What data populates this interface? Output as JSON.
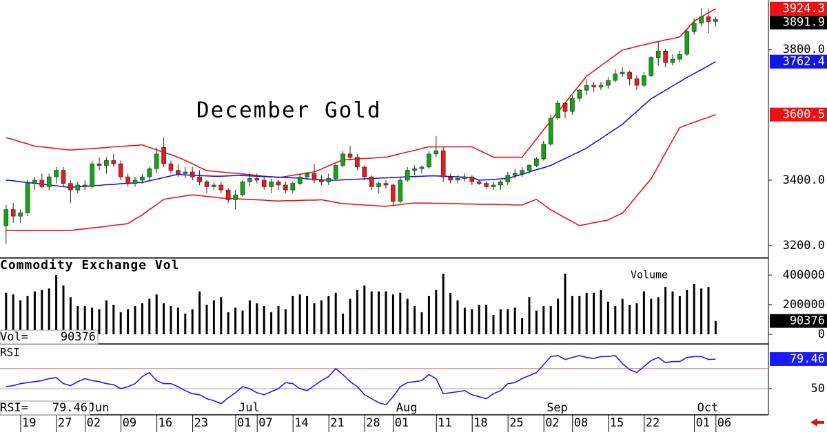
{
  "chart_data": [
    {
      "type": "candlestick",
      "title": "December Gold",
      "categories": [
        null,
        null,
        null,
        "19",
        null,
        null,
        null,
        null,
        "27",
        null,
        null,
        null,
        "02",
        null,
        null,
        null,
        null,
        "09",
        null,
        null,
        null,
        null,
        "16",
        null,
        null,
        null,
        null,
        "23",
        null,
        null,
        null,
        null,
        null,
        "01",
        null,
        null,
        "07",
        null,
        null,
        null,
        null,
        "14",
        null,
        null,
        null,
        null,
        "21",
        null,
        null,
        null,
        null,
        "28",
        null,
        null,
        null,
        "01",
        null,
        null,
        null,
        null,
        null,
        "11",
        null,
        null,
        null,
        null,
        "18",
        null,
        null,
        null,
        null,
        "25",
        null,
        null,
        null,
        null,
        "02",
        null,
        null,
        null,
        "08",
        null,
        null,
        null,
        null,
        "15",
        null,
        null,
        null,
        null,
        "22",
        null,
        null,
        null,
        null,
        null,
        null,
        "01",
        null,
        null,
        "06"
      ],
      "months": [
        null,
        null,
        null,
        null,
        null,
        null,
        null,
        null,
        null,
        null,
        null,
        null,
        "Jun",
        null,
        null,
        null,
        null,
        null,
        null,
        null,
        null,
        null,
        null,
        null,
        null,
        null,
        null,
        null,
        null,
        null,
        null,
        null,
        null,
        "Jul",
        null,
        null,
        null,
        null,
        null,
        null,
        null,
        null,
        null,
        null,
        null,
        null,
        null,
        null,
        null,
        null,
        null,
        null,
        null,
        null,
        null,
        "Aug",
        null,
        null,
        null,
        null,
        null,
        null,
        null,
        null,
        null,
        null,
        null,
        null,
        null,
        null,
        null,
        null,
        null,
        null,
        null,
        null,
        "Sep",
        null,
        null,
        null,
        null,
        null,
        null,
        null,
        null,
        null,
        null,
        null,
        null,
        null,
        null,
        null,
        null,
        null,
        null,
        null,
        null,
        "Oct",
        null,
        null,
        null
      ],
      "open": [
        3260,
        3310,
        3290,
        3300,
        3390,
        3400,
        3380,
        3410,
        3430,
        3390,
        3370,
        3385,
        3380,
        3450,
        3445,
        3460,
        3450,
        3410,
        3390,
        3400,
        3410,
        3435,
        3500,
        3450,
        3430,
        3420,
        3425,
        3410,
        3395,
        3380,
        3385,
        3370,
        3340,
        3355,
        3395,
        3405,
        3400,
        3380,
        3395,
        3385,
        3370,
        3390,
        3410,
        3420,
        3400,
        3395,
        3405,
        3445,
        3480,
        3470,
        3440,
        3410,
        3380,
        3390,
        3385,
        3335,
        3400,
        3430,
        3435,
        3440,
        3480,
        3490,
        3410,
        3400,
        3405,
        3410,
        3395,
        3390,
        3380,
        3385,
        3395,
        3415,
        3420,
        3430,
        3445,
        3465,
        3510,
        3590,
        3635,
        3610,
        3650,
        3675,
        3690,
        3685,
        3690,
        3705,
        3725,
        3730,
        3710,
        3690,
        3720,
        3775,
        3795,
        3760,
        3770,
        3785,
        3855,
        3880,
        3900,
        3885,
        null
      ],
      "high": [
        3325,
        3330,
        3310,
        3400,
        3410,
        3420,
        3420,
        3440,
        3440,
        3400,
        3395,
        3400,
        3460,
        3470,
        3470,
        3480,
        3460,
        3420,
        3410,
        3420,
        3440,
        3500,
        3530,
        3460,
        3450,
        3440,
        3440,
        3430,
        3400,
        3395,
        3395,
        3375,
        3370,
        3400,
        3420,
        3420,
        3410,
        3405,
        3400,
        3395,
        3395,
        3420,
        3425,
        3450,
        3415,
        3420,
        3450,
        3490,
        3505,
        3480,
        3445,
        3415,
        3395,
        3400,
        3390,
        3410,
        3440,
        3445,
        3445,
        3490,
        3535,
        3500,
        3420,
        3415,
        3420,
        3415,
        3400,
        3395,
        3395,
        3400,
        3425,
        3435,
        3440,
        3450,
        3470,
        3520,
        3600,
        3645,
        3640,
        3660,
        3680,
        3708,
        3700,
        3700,
        3715,
        3740,
        3745,
        3735,
        3720,
        3730,
        3780,
        3825,
        3800,
        3785,
        3795,
        3860,
        3895,
        3925,
        3925,
        3900,
        null
      ],
      "low": [
        3205,
        3270,
        3270,
        3290,
        3370,
        3375,
        3370,
        3390,
        3380,
        3330,
        3360,
        3370,
        3375,
        3430,
        3420,
        3440,
        3400,
        3380,
        3380,
        3390,
        3400,
        3420,
        3440,
        3420,
        3410,
        3405,
        3400,
        3385,
        3360,
        3370,
        3360,
        3330,
        3310,
        3350,
        3380,
        3390,
        3370,
        3360,
        3370,
        3360,
        3360,
        3385,
        3400,
        3390,
        3385,
        3385,
        3400,
        3440,
        3460,
        3430,
        3400,
        3370,
        3360,
        3375,
        3320,
        3330,
        3395,
        3415,
        3420,
        3435,
        3470,
        3395,
        3390,
        3390,
        3395,
        3385,
        3385,
        3375,
        3370,
        3370,
        3385,
        3405,
        3410,
        3420,
        3440,
        3460,
        3505,
        3585,
        3590,
        3600,
        3640,
        3660,
        3670,
        3675,
        3680,
        3700,
        3715,
        3690,
        3675,
        3685,
        3715,
        3750,
        3745,
        3750,
        3760,
        3780,
        3845,
        3870,
        3850,
        3870,
        null
      ],
      "close": [
        3310,
        3290,
        3300,
        3390,
        3400,
        3380,
        3410,
        3430,
        3390,
        3370,
        3385,
        3380,
        3450,
        3445,
        3460,
        3450,
        3410,
        3390,
        3400,
        3410,
        3435,
        3480,
        3450,
        3430,
        3420,
        3425,
        3410,
        3395,
        3380,
        3385,
        3370,
        3340,
        3355,
        3395,
        3405,
        3400,
        3380,
        3395,
        3385,
        3370,
        3390,
        3410,
        3420,
        3400,
        3395,
        3405,
        3445,
        3480,
        3470,
        3440,
        3410,
        3380,
        3390,
        3385,
        3335,
        3400,
        3430,
        3435,
        3440,
        3480,
        3490,
        3410,
        3400,
        3405,
        3410,
        3395,
        3390,
        3380,
        3385,
        3395,
        3415,
        3420,
        3430,
        3445,
        3465,
        3510,
        3590,
        3635,
        3610,
        3650,
        3675,
        3690,
        3685,
        3690,
        3705,
        3725,
        3730,
        3710,
        3690,
        3720,
        3775,
        3795,
        3760,
        3770,
        3785,
        3855,
        3880,
        3900,
        3885,
        3891.9,
        null
      ],
      "up_color": "#11a511",
      "down_color": "#e81a1a",
      "last_color": "#000000",
      "bands": [
        {
          "color": "#ee1111",
          "values": [
            3530,
            3524,
            3517,
            3511,
            3504,
            3502,
            3499,
            3497,
            3494,
            3492,
            3494,
            3495,
            3497,
            3498,
            3500,
            3502,
            3503,
            3505,
            3506,
            3508,
            3500,
            3493,
            3485,
            3478,
            3470,
            3460,
            3450,
            3439,
            3429,
            3427,
            3425,
            3423,
            3421,
            3419,
            3417,
            3414,
            3412,
            3410,
            3408,
            3411,
            3415,
            3418,
            3422,
            3425,
            3434,
            3444,
            3453,
            3462,
            3463,
            3465,
            3466,
            3467,
            3469,
            3470,
            3475,
            3481,
            3486,
            3491,
            3497,
            3502,
            3502,
            3502,
            3502,
            3502,
            3502,
            3502,
            3491,
            3481,
            3470,
            3470,
            3470,
            3470,
            3470,
            3498,
            3526,
            3554,
            3582,
            3609,
            3636,
            3664,
            3691,
            3718,
            3734,
            3750,
            3766,
            3782,
            3798,
            3803,
            3809,
            3814,
            3819,
            3824,
            3829,
            3833,
            3838,
            3862,
            3886,
            3899,
            3912,
            3924.3,
            null
          ]
        },
        {
          "color": "#1414e6",
          "values": [
            3400,
            3398,
            3395,
            3393,
            3390,
            3388,
            3385,
            3383,
            3380,
            3378,
            3380,
            3381,
            3383,
            3384,
            3386,
            3387,
            3389,
            3390,
            3392,
            3393,
            3398,
            3403,
            3408,
            3413,
            3418,
            3416,
            3415,
            3414,
            3413,
            3412,
            3412,
            3413,
            3414,
            3414,
            3413,
            3412,
            3411,
            3410,
            3409,
            3408,
            3407,
            3406,
            3404,
            3402,
            3401,
            3400,
            3400,
            3401,
            3402,
            3403,
            3404,
            3405,
            3406,
            3407,
            3408,
            3409,
            3410,
            3411,
            3412,
            3413,
            3413,
            3412,
            3411,
            3410,
            3409,
            3408,
            3400,
            3401,
            3402,
            3404,
            3405,
            3412,
            3418,
            3425,
            3432,
            3438,
            3445,
            3456,
            3466,
            3477,
            3487,
            3498,
            3513,
            3527,
            3542,
            3556,
            3571,
            3591,
            3610,
            3630,
            3649,
            3662,
            3675,
            3688,
            3701,
            3714,
            3726,
            3738,
            3750,
            3762.4,
            null
          ]
        },
        {
          "color": "#ee1111",
          "values": [
            3246,
            3246,
            3246,
            3246,
            3246,
            3246,
            3246,
            3246,
            3246,
            3246,
            3249,
            3251,
            3254,
            3256,
            3259,
            3262,
            3264,
            3267,
            3281,
            3294,
            3310,
            3325,
            3341,
            3345,
            3348,
            3352,
            3355,
            3353,
            3350,
            3348,
            3345,
            3344,
            3343,
            3342,
            3341,
            3340,
            3339,
            3337,
            3336,
            3337,
            3337,
            3338,
            3339,
            3339,
            3340,
            3336,
            3332,
            3328,
            3327,
            3325,
            3324,
            3323,
            3321,
            3320,
            3323,
            3325,
            3328,
            3330,
            3330,
            3330,
            3329,
            3329,
            3328,
            3328,
            3327,
            3327,
            3326,
            3326,
            3326,
            3325,
            3325,
            3324,
            3324,
            3333,
            3341,
            3325,
            3309,
            3297,
            3285,
            3273,
            3261,
            3265,
            3270,
            3274,
            3278,
            3289,
            3299,
            3325,
            3352,
            3378,
            3404,
            3443,
            3483,
            3522,
            3561,
            3569,
            3577,
            3585,
            3592,
            3600.5,
            null
          ]
        }
      ],
      "ylim": [
        3162,
        3951
      ],
      "yticks": [
        {
          "value": 3200,
          "label": "3200.0"
        },
        {
          "value": 3400,
          "label": "3400.0"
        },
        {
          "value": 3800,
          "label": "3800.0"
        }
      ]
    },
    {
      "type": "bar",
      "title": "Commodity Exchange Vol",
      "label": "Volume",
      "readout_label": "Vol=",
      "color": "#000000",
      "values": [
        280000,
        270000,
        230000,
        260000,
        290000,
        300000,
        310000,
        400000,
        330000,
        250000,
        190000,
        190000,
        180000,
        170000,
        230000,
        200000,
        150000,
        170000,
        190000,
        210000,
        240000,
        270000,
        210000,
        190000,
        180000,
        140000,
        170000,
        290000,
        200000,
        230000,
        250000,
        150000,
        180000,
        160000,
        230000,
        210000,
        190000,
        150000,
        190000,
        170000,
        260000,
        270000,
        260000,
        210000,
        230000,
        260000,
        280000,
        140000,
        240000,
        300000,
        330000,
        290000,
        290000,
        290000,
        270000,
        280000,
        240000,
        190000,
        150000,
        260000,
        300000,
        410000,
        280000,
        230000,
        180000,
        170000,
        200000,
        200000,
        130000,
        170000,
        170000,
        180000,
        110000,
        250000,
        160000,
        190000,
        190000,
        240000,
        410000,
        260000,
        260000,
        280000,
        280000,
        300000,
        220000,
        190000,
        240000,
        200000,
        210000,
        290000,
        240000,
        250000,
        320000,
        290000,
        260000,
        300000,
        340000,
        310000,
        320000,
        90376,
        null
      ],
      "ylim": [
        0,
        516000
      ],
      "yticks": [
        0,
        200000,
        400000
      ]
    },
    {
      "type": "line",
      "title": "RSI",
      "readout_label": "RSI=",
      "color": "#1a1aff",
      "values": [
        52,
        53,
        55,
        56,
        57,
        58,
        60,
        61,
        55,
        53,
        57,
        60,
        58,
        57,
        55,
        54,
        50,
        52,
        55,
        62,
        66,
        58,
        55,
        55,
        52,
        48,
        45,
        44,
        40,
        38,
        35,
        41,
        46,
        52,
        50,
        46,
        44,
        47,
        50,
        56,
        55,
        50,
        48,
        53,
        58,
        62,
        70,
        64,
        57,
        52,
        44,
        40,
        36,
        34,
        42,
        52,
        56,
        57,
        58,
        64,
        60,
        45,
        46,
        47,
        48,
        44,
        42,
        40,
        45,
        48,
        55,
        56,
        60,
        63,
        66,
        74,
        82,
        83,
        79,
        81,
        83,
        81,
        80,
        82,
        82,
        83,
        75,
        69,
        66,
        72,
        78,
        81,
        76,
        77,
        77,
        81,
        82,
        82,
        79,
        79.46,
        null
      ],
      "reference_lines": [
        {
          "value": 70,
          "color": "#e07070"
        },
        {
          "value": 50,
          "color": "#a0a0a0"
        }
      ],
      "ylim": [
        24,
        94.5
      ],
      "yticks": [
        50
      ]
    }
  ]
}
